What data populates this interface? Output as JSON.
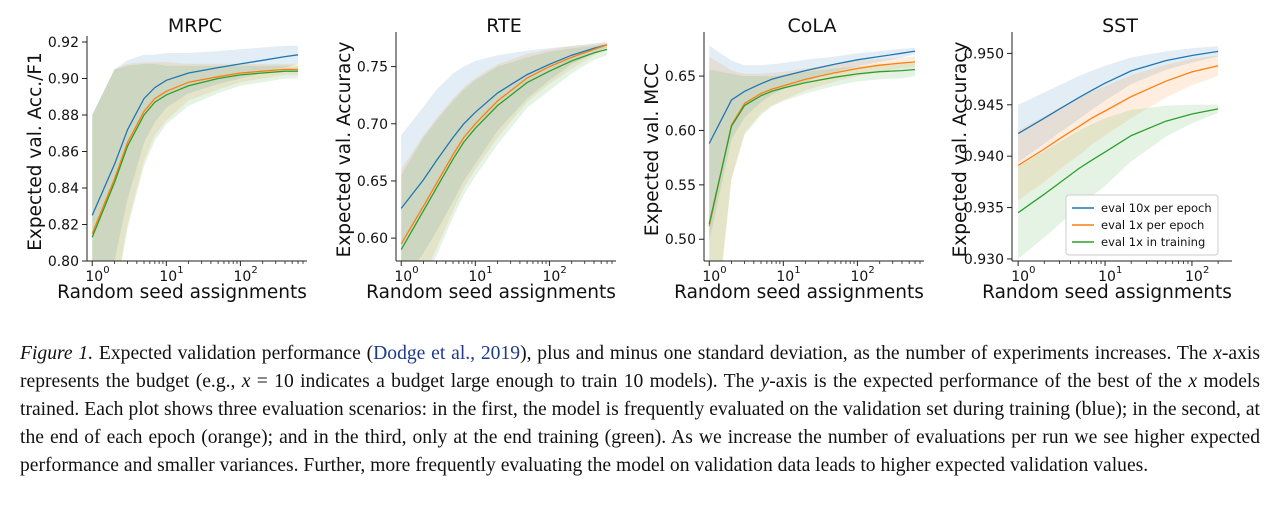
{
  "chart_data": [
    {
      "type": "line",
      "title": "MRPC",
      "xlabel": "Random seed assignments",
      "ylabel": "Expected val. Acc./F1",
      "xscale": "log",
      "xlim": [
        0.85,
        700
      ],
      "ylim": [
        0.8,
        0.92
      ],
      "yticks": [
        0.8,
        0.82,
        0.84,
        0.86,
        0.88,
        0.9,
        0.92
      ],
      "ytick_labels": [
        "0.80",
        "0.82",
        "0.84",
        "0.86",
        "0.88",
        "0.90",
        "0.92"
      ],
      "xticks": [
        1,
        10,
        100
      ],
      "xtick_labels": [
        "10",
        "10",
        "10"
      ],
      "xtick_exponents": [
        "0",
        "1",
        "2"
      ],
      "x": [
        1,
        2,
        3,
        5,
        7,
        10,
        20,
        50,
        100,
        200,
        400,
        600
      ],
      "series": [
        {
          "color": "#1f77b4",
          "values": [
            0.825,
            0.853,
            0.872,
            0.889,
            0.895,
            0.899,
            0.903,
            0.906,
            0.908,
            0.91,
            0.912,
            0.913
          ],
          "upper": [
            0.88,
            0.905,
            0.91,
            0.913,
            0.913,
            0.914,
            0.914,
            0.915,
            0.916,
            0.917,
            0.918,
            0.918
          ],
          "lower": [
            0.775,
            0.8,
            0.834,
            0.865,
            0.876,
            0.884,
            0.892,
            0.897,
            0.9,
            0.903,
            0.906,
            0.908
          ]
        },
        {
          "color": "#ff7f0e",
          "values": [
            0.815,
            0.845,
            0.865,
            0.882,
            0.889,
            0.893,
            0.898,
            0.901,
            0.903,
            0.904,
            0.905,
            0.905
          ],
          "upper": [
            0.88,
            0.905,
            0.908,
            0.909,
            0.909,
            0.909,
            0.908,
            0.908,
            0.908,
            0.908,
            0.908,
            0.908
          ],
          "lower": [
            0.75,
            0.78,
            0.82,
            0.855,
            0.869,
            0.877,
            0.888,
            0.894,
            0.898,
            0.9,
            0.902,
            0.902
          ]
        },
        {
          "color": "#2ca02c",
          "values": [
            0.813,
            0.843,
            0.863,
            0.88,
            0.887,
            0.891,
            0.896,
            0.9,
            0.902,
            0.903,
            0.904,
            0.904
          ],
          "upper": [
            0.88,
            0.905,
            0.907,
            0.908,
            0.908,
            0.907,
            0.907,
            0.907,
            0.907,
            0.907,
            0.907,
            0.907
          ],
          "lower": [
            0.748,
            0.778,
            0.818,
            0.852,
            0.866,
            0.875,
            0.885,
            0.892,
            0.896,
            0.898,
            0.9,
            0.9
          ]
        }
      ]
    },
    {
      "type": "line",
      "title": "RTE",
      "xlabel": "Random seed assignments",
      "ylabel": "Expected val. Accuracy",
      "xscale": "log",
      "xlim": [
        0.85,
        700
      ],
      "ylim": [
        0.58,
        0.775
      ],
      "yticks": [
        0.6,
        0.65,
        0.7,
        0.75
      ],
      "ytick_labels": [
        "0.60",
        "0.65",
        "0.70",
        "0.75"
      ],
      "xticks": [
        1,
        10,
        100
      ],
      "xtick_labels": [
        "10",
        "10",
        "10"
      ],
      "xtick_exponents": [
        "0",
        "1",
        "2"
      ],
      "x": [
        1,
        2,
        3,
        5,
        7,
        10,
        20,
        50,
        100,
        200,
        400,
        600
      ],
      "series": [
        {
          "color": "#1f77b4",
          "values": [
            0.626,
            0.651,
            0.668,
            0.688,
            0.7,
            0.71,
            0.727,
            0.743,
            0.752,
            0.76,
            0.766,
            0.769
          ],
          "upper": [
            0.69,
            0.715,
            0.73,
            0.744,
            0.75,
            0.755,
            0.76,
            0.764,
            0.766,
            0.768,
            0.77,
            0.771
          ],
          "lower": [
            0.56,
            0.587,
            0.606,
            0.632,
            0.65,
            0.665,
            0.694,
            0.722,
            0.738,
            0.752,
            0.762,
            0.767
          ]
        },
        {
          "color": "#ff7f0e",
          "values": [
            0.595,
            0.628,
            0.648,
            0.673,
            0.688,
            0.7,
            0.72,
            0.74,
            0.75,
            0.758,
            0.765,
            0.769
          ],
          "upper": [
            0.66,
            0.69,
            0.705,
            0.722,
            0.732,
            0.74,
            0.752,
            0.761,
            0.765,
            0.768,
            0.77,
            0.772
          ],
          "lower": [
            0.53,
            0.566,
            0.591,
            0.624,
            0.644,
            0.66,
            0.688,
            0.719,
            0.735,
            0.748,
            0.76,
            0.766
          ]
        },
        {
          "color": "#2ca02c",
          "values": [
            0.59,
            0.624,
            0.644,
            0.669,
            0.684,
            0.696,
            0.716,
            0.736,
            0.746,
            0.755,
            0.762,
            0.765
          ],
          "upper": [
            0.655,
            0.688,
            0.703,
            0.72,
            0.73,
            0.738,
            0.75,
            0.758,
            0.763,
            0.766,
            0.768,
            0.77
          ],
          "lower": [
            0.525,
            0.56,
            0.585,
            0.618,
            0.638,
            0.654,
            0.682,
            0.714,
            0.729,
            0.744,
            0.756,
            0.76
          ]
        }
      ]
    },
    {
      "type": "line",
      "title": "CoLA",
      "xlabel": "Random seed assignments",
      "ylabel": "Expected val.  MCC",
      "xscale": "log",
      "xlim": [
        0.85,
        700
      ],
      "ylim": [
        0.48,
        0.685
      ],
      "yticks": [
        0.5,
        0.55,
        0.6,
        0.65
      ],
      "ytick_labels": [
        "0.50",
        "0.55",
        "0.60",
        "0.65"
      ],
      "xticks": [
        1,
        10,
        100
      ],
      "xtick_labels": [
        "10",
        "10",
        "10"
      ],
      "xtick_exponents": [
        "0",
        "1",
        "2"
      ],
      "x": [
        1,
        2,
        3,
        5,
        7,
        10,
        20,
        50,
        100,
        200,
        400,
        600
      ],
      "series": [
        {
          "color": "#1f77b4",
          "values": [
            0.588,
            0.628,
            0.636,
            0.643,
            0.647,
            0.65,
            0.655,
            0.661,
            0.665,
            0.668,
            0.671,
            0.673
          ],
          "upper": [
            0.678,
            0.664,
            0.66,
            0.66,
            0.661,
            0.662,
            0.665,
            0.668,
            0.671,
            0.673,
            0.675,
            0.676
          ],
          "lower": [
            0.498,
            0.592,
            0.612,
            0.626,
            0.633,
            0.638,
            0.645,
            0.654,
            0.659,
            0.663,
            0.667,
            0.67
          ]
        },
        {
          "color": "#ff7f0e",
          "values": [
            0.512,
            0.605,
            0.625,
            0.634,
            0.638,
            0.641,
            0.647,
            0.653,
            0.657,
            0.66,
            0.662,
            0.663
          ],
          "upper": [
            0.668,
            0.655,
            0.652,
            0.652,
            0.653,
            0.654,
            0.657,
            0.661,
            0.664,
            0.666,
            0.667,
            0.668
          ],
          "lower": [
            0.356,
            0.555,
            0.598,
            0.616,
            0.623,
            0.628,
            0.637,
            0.645,
            0.65,
            0.654,
            0.657,
            0.658
          ]
        },
        {
          "color": "#2ca02c",
          "values": [
            0.514,
            0.604,
            0.623,
            0.632,
            0.636,
            0.639,
            0.644,
            0.649,
            0.652,
            0.654,
            0.655,
            0.656
          ],
          "upper": [
            0.656,
            0.652,
            0.65,
            0.65,
            0.65,
            0.651,
            0.654,
            0.657,
            0.659,
            0.661,
            0.662,
            0.662
          ],
          "lower": [
            0.372,
            0.556,
            0.596,
            0.614,
            0.622,
            0.627,
            0.634,
            0.641,
            0.645,
            0.647,
            0.648,
            0.65
          ]
        }
      ]
    },
    {
      "type": "line",
      "title": "SST",
      "xlabel": "Random seed assignments",
      "ylabel": "Expected val. Accuracy",
      "xscale": "log",
      "xlim": [
        0.85,
        260
      ],
      "ylim": [
        0.9298,
        0.9515
      ],
      "yticks": [
        0.93,
        0.935,
        0.94,
        0.945,
        0.95
      ],
      "ytick_labels": [
        "0.930",
        "0.935",
        "0.940",
        "0.945",
        "0.950"
      ],
      "xticks": [
        1,
        10,
        100
      ],
      "xtick_labels": [
        "10",
        "10",
        "10"
      ],
      "xtick_exponents": [
        "0",
        "1",
        "2"
      ],
      "x": [
        1,
        2,
        3,
        5,
        7,
        10,
        20,
        50,
        100,
        200
      ],
      "legend": "lower right",
      "series": [
        {
          "name": "eval 10x per epoch",
          "color": "#1f77b4",
          "values": [
            0.9422,
            0.9437,
            0.9446,
            0.9457,
            0.9464,
            0.9471,
            0.9483,
            0.9493,
            0.9498,
            0.9502
          ],
          "upper": [
            0.945,
            0.9462,
            0.9469,
            0.9478,
            0.9483,
            0.9488,
            0.9496,
            0.9502,
            0.9505,
            0.9507
          ],
          "lower": [
            0.9394,
            0.9412,
            0.9423,
            0.9436,
            0.9445,
            0.9454,
            0.947,
            0.9484,
            0.9491,
            0.9497
          ]
        },
        {
          "name": "eval 1x per epoch",
          "color": "#ff7f0e",
          "values": [
            0.9391,
            0.9407,
            0.9417,
            0.9429,
            0.9437,
            0.9444,
            0.9458,
            0.9473,
            0.9482,
            0.9488
          ],
          "upper": [
            0.9425,
            0.9439,
            0.9447,
            0.9457,
            0.9463,
            0.9468,
            0.9479,
            0.9489,
            0.9495,
            0.9498
          ],
          "lower": [
            0.9357,
            0.9375,
            0.9387,
            0.9401,
            0.9411,
            0.942,
            0.9437,
            0.9457,
            0.9469,
            0.9478
          ]
        },
        {
          "name": "eval 1x in training",
          "color": "#2ca02c",
          "values": [
            0.9345,
            0.9363,
            0.9374,
            0.9388,
            0.9396,
            0.9404,
            0.942,
            0.9434,
            0.9441,
            0.9446
          ],
          "upper": [
            0.939,
            0.9405,
            0.9414,
            0.9425,
            0.9431,
            0.9437,
            0.9445,
            0.9449,
            0.945,
            0.945
          ],
          "lower": [
            0.93,
            0.9321,
            0.9334,
            0.9351,
            0.9361,
            0.9371,
            0.9395,
            0.9419,
            0.9432,
            0.9442
          ]
        }
      ]
    }
  ],
  "caption": {
    "label": "Figure 1.",
    "part1": " Expected validation performance (",
    "citation": "Dodge et al., 2019",
    "part2": "), plus and minus one standard deviation, as the number of experiments increases. The ",
    "var_x": "x",
    "part3": "-axis represents the budget (e.g., ",
    "var_x2": "x",
    "part4": " = 10 indicates a budget large enough to train 10 models). The ",
    "var_y": "y",
    "part5": "-axis is the expected performance of the best of the ",
    "var_x3": "x",
    "part6": " models trained. Each plot shows three evaluation scenarios: in the first, the model is frequently evaluated on the validation set during training (blue); in the second, at the end of each epoch (orange); and in the third, only at the end training (green). As we increase the number of evaluations per run we see higher expected performance and smaller variances. Further, more frequently evaluating the model on validation data leads to higher expected validation values."
  }
}
